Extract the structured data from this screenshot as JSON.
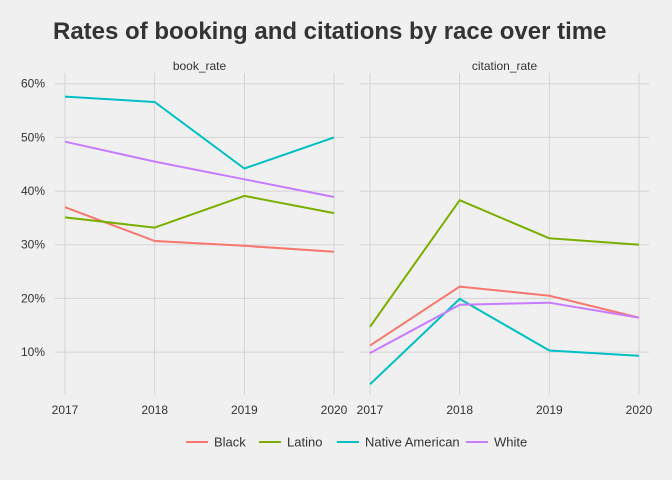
{
  "chart_data": {
    "type": "line",
    "title": "Rates of booking and citations by race over time",
    "xlabel": "",
    "ylabel": "",
    "x": [
      2017,
      2018,
      2019,
      2020
    ],
    "ylim": [
      0.02,
      0.62
    ],
    "y_ticks": [
      0.1,
      0.2,
      0.3,
      0.4,
      0.5,
      0.6
    ],
    "y_tick_labels": [
      "10%",
      "20%",
      "30%",
      "40%",
      "50%",
      "60%"
    ],
    "x_tick_labels": [
      "2017",
      "2018",
      "2019",
      "2020"
    ],
    "grid": true,
    "legend_position": "bottom",
    "legend": [
      "Black",
      "Latino",
      "Native American",
      "White"
    ],
    "colors": {
      "Black": "#F8766D",
      "Latino": "#7CAE00",
      "Native American": "#00BFC4",
      "White": "#C77CFF"
    },
    "panels": [
      {
        "name": "book_rate",
        "series": [
          {
            "name": "Black",
            "values": [
              0.37,
              0.307,
              0.298,
              0.287
            ]
          },
          {
            "name": "Latino",
            "values": [
              0.351,
              0.332,
              0.391,
              0.359
            ]
          },
          {
            "name": "Native American",
            "values": [
              0.576,
              0.566,
              0.442,
              0.5
            ]
          },
          {
            "name": "White",
            "values": [
              0.492,
              0.455,
              0.422,
              0.389
            ]
          }
        ]
      },
      {
        "name": "citation_rate",
        "series": [
          {
            "name": "Black",
            "values": [
              0.112,
              0.222,
              0.205,
              0.164
            ]
          },
          {
            "name": "Latino",
            "values": [
              0.147,
              0.383,
              0.312,
              0.3
            ]
          },
          {
            "name": "Native American",
            "values": [
              0.04,
              0.199,
              0.103,
              0.093
            ]
          },
          {
            "name": "White",
            "values": [
              0.098,
              0.188,
              0.192,
              0.164
            ]
          }
        ]
      }
    ]
  }
}
